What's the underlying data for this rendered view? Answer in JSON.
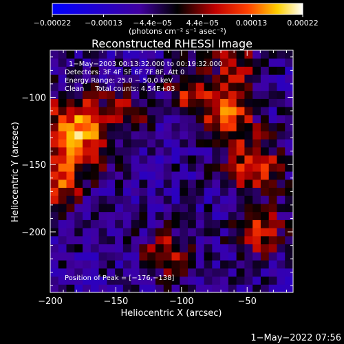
{
  "chart_data": {
    "type": "heatmap",
    "title": "Reconstructed RHESSI Image",
    "xlabel": "Heliocentric X (arcsec)",
    "ylabel": "Heliocentric Y (arcsec)",
    "xlim": [
      -200,
      -15
    ],
    "ylim": [
      -245,
      -65
    ],
    "x_ticks": [
      -200,
      -150,
      -100,
      -50
    ],
    "x_tick_labels": [
      "−200",
      "−150",
      "−100",
      "−50"
    ],
    "y_ticks": [
      -100,
      -150,
      -200
    ],
    "y_tick_labels": [
      "−100",
      "−150",
      "−200"
    ],
    "colorbar": {
      "range": [
        -0.00022,
        0.00022
      ],
      "tick_values": [
        -0.00022,
        -0.00013,
        -4.4e-05,
        4.4e-05,
        0.00013,
        0.00022
      ],
      "tick_labels": [
        "−0.00022",
        "−0.00013",
        "−4.4e−05",
        "4.4e−05",
        "0.00013",
        "0.00022"
      ],
      "colors": [
        "#0000ff",
        "#000000",
        "#ff0000",
        "#ffff00",
        "#ffffff"
      ],
      "unit_label": "(photons cm⁻² s⁻¹ asec⁻²)"
    },
    "grid": 30,
    "hotspots": [
      {
        "x": -180,
        "y": -125,
        "value": 0.00022,
        "sigma": 18
      },
      {
        "x": -195,
        "y": -165,
        "value": 0.00015,
        "sigma": 14
      },
      {
        "x": -95,
        "y": -95,
        "value": 0.00012,
        "sigma": 12
      },
      {
        "x": -65,
        "y": -110,
        "value": 0.00018,
        "sigma": 14
      },
      {
        "x": -45,
        "y": -150,
        "value": 0.00016,
        "sigma": 14
      },
      {
        "x": -40,
        "y": -200,
        "value": 0.00014,
        "sigma": 13
      },
      {
        "x": -110,
        "y": -215,
        "value": 0.00012,
        "sigma": 13
      },
      {
        "x": -140,
        "y": -110,
        "value": 8e-05,
        "sigma": 12
      },
      {
        "x": -60,
        "y": -75,
        "value": 0.0001,
        "sigma": 12
      }
    ],
    "annotations": {
      "time_range": "1−May−2003 00:13:32.000 to 00:19:32.000",
      "detectors": "Detectors: 3F 4F 5F 6F 7F 8F, Att 0",
      "energy": "Energy Range: 25.0 − 50.0 keV",
      "clean": "Clean     Total counts: 4.54E+03",
      "peak": "Position of Peak = [−176,−138]"
    }
  },
  "footer": {
    "timestamp": "1−May−2022 07:56"
  }
}
